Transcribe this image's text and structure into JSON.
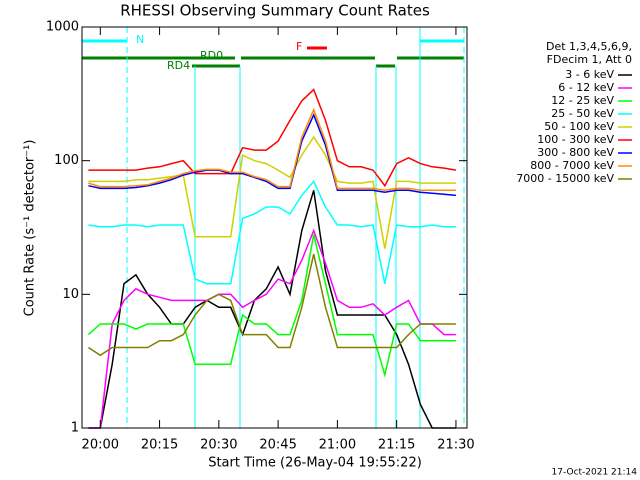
{
  "chart_data": {
    "type": "line",
    "title": "RHESSI Observing Summary Count Rates",
    "xlabel": "Start Time (26-May-04 19:55:22)",
    "ylabel": "Count Rate (s⁻¹ detector⁻¹)",
    "legend_header": [
      "Det 1,3,4,5,6,9,",
      "FDecim 1, Att 0"
    ],
    "annotations": {
      "night": "N",
      "flare": "F",
      "rd0": "RD0",
      "rd4": "RD4"
    },
    "footer": "17-Oct-2021 21:14",
    "log_y": true,
    "legend": "right",
    "xlim": [
      -4.63,
      92.8
    ],
    "xticks": [
      {
        "value": 0,
        "label": "20:00"
      },
      {
        "value": 15,
        "label": "20:15"
      },
      {
        "value": 30,
        "label": "20:30"
      },
      {
        "value": 45,
        "label": "20:45"
      },
      {
        "value": 60,
        "label": "21:00"
      },
      {
        "value": 75,
        "label": "21:15"
      },
      {
        "value": 90,
        "label": "21:30"
      }
    ],
    "ylim": [
      1,
      1000
    ],
    "yticks": [
      1,
      10,
      100,
      1000
    ],
    "x": [
      -3,
      0,
      3,
      6,
      9,
      12,
      15,
      18,
      21,
      24,
      27,
      30,
      33,
      36,
      39,
      42,
      45,
      48,
      51,
      54,
      57,
      60,
      63,
      66,
      69,
      72,
      75,
      78,
      81,
      84,
      87,
      90
    ],
    "series": [
      {
        "name": "3 - 6 keV",
        "color": "#000000",
        "values": [
          1,
          1,
          3,
          12,
          14,
          10,
          8,
          6,
          6,
          8,
          9,
          8,
          8,
          5,
          9,
          11,
          16,
          10,
          30,
          60,
          15,
          7,
          7,
          7,
          7,
          7,
          5,
          3,
          1.5,
          1,
          1,
          1
        ]
      },
      {
        "name": "6 - 12 keV",
        "color": "#ff00ff",
        "values": [
          1,
          1,
          6,
          9,
          11,
          10,
          9.5,
          9,
          9,
          9,
          9,
          10,
          10,
          8,
          9,
          10,
          13,
          12,
          18,
          30,
          17,
          9,
          8,
          8,
          8.5,
          7,
          8,
          9,
          6,
          6,
          5,
          5
        ]
      },
      {
        "name": "12 - 25 keV",
        "color": "#00ff00",
        "values": [
          5,
          6,
          6,
          6,
          5.5,
          6,
          6,
          6,
          6,
          3,
          3,
          3,
          3,
          7,
          6,
          6,
          5,
          5,
          9,
          28,
          12,
          5,
          5,
          5,
          5,
          2.5,
          6,
          6,
          4.5,
          4.5,
          4.5,
          4.5
        ]
      },
      {
        "name": "25 - 50 keV",
        "color": "#00ffff",
        "values": [
          33,
          32,
          32,
          33,
          33,
          32,
          33,
          33,
          33,
          13,
          12,
          12,
          12,
          37,
          40,
          45,
          45,
          40,
          55,
          70,
          45,
          33,
          33,
          32,
          33,
          12,
          33,
          32,
          32,
          33,
          32,
          32
        ]
      },
      {
        "name": "50 - 100 keV",
        "color": "#d0d000",
        "values": [
          70,
          70,
          70,
          70,
          72,
          72,
          74,
          76,
          78,
          27,
          27,
          27,
          27,
          110,
          100,
          95,
          85,
          75,
          110,
          150,
          110,
          70,
          68,
          68,
          70,
          22,
          70,
          70,
          68,
          68,
          68,
          68
        ]
      },
      {
        "name": "100 - 300 keV",
        "color": "#ff0000",
        "values": [
          85,
          85,
          85,
          85,
          85,
          88,
          90,
          95,
          100,
          80,
          80,
          80,
          80,
          125,
          120,
          120,
          140,
          200,
          280,
          340,
          200,
          100,
          90,
          90,
          85,
          65,
          95,
          105,
          95,
          90,
          88,
          85
        ]
      },
      {
        "name": "300 - 800 keV",
        "color": "#0000ff",
        "values": [
          65,
          62,
          62,
          62,
          63,
          65,
          68,
          72,
          78,
          82,
          85,
          85,
          80,
          80,
          75,
          70,
          62,
          62,
          140,
          220,
          130,
          60,
          60,
          60,
          60,
          58,
          60,
          60,
          58,
          57,
          56,
          55
        ]
      },
      {
        "name": "800 - 7000 keV",
        "color": "#ff8c00",
        "values": [
          68,
          64,
          64,
          64,
          65,
          66,
          70,
          74,
          80,
          84,
          86,
          86,
          82,
          82,
          76,
          72,
          64,
          64,
          150,
          240,
          140,
          62,
          62,
          62,
          62,
          60,
          62,
          62,
          60,
          60,
          60,
          60
        ]
      },
      {
        "name": "7000 - 15000 keV",
        "color": "#808000",
        "values": [
          4,
          3.5,
          4,
          4,
          4,
          4,
          4.5,
          4.5,
          5,
          7,
          9,
          10,
          9,
          5,
          5,
          5,
          4,
          4,
          8,
          20,
          8,
          4,
          4,
          4,
          4,
          4,
          4,
          5,
          6,
          6,
          6,
          6
        ]
      }
    ]
  }
}
